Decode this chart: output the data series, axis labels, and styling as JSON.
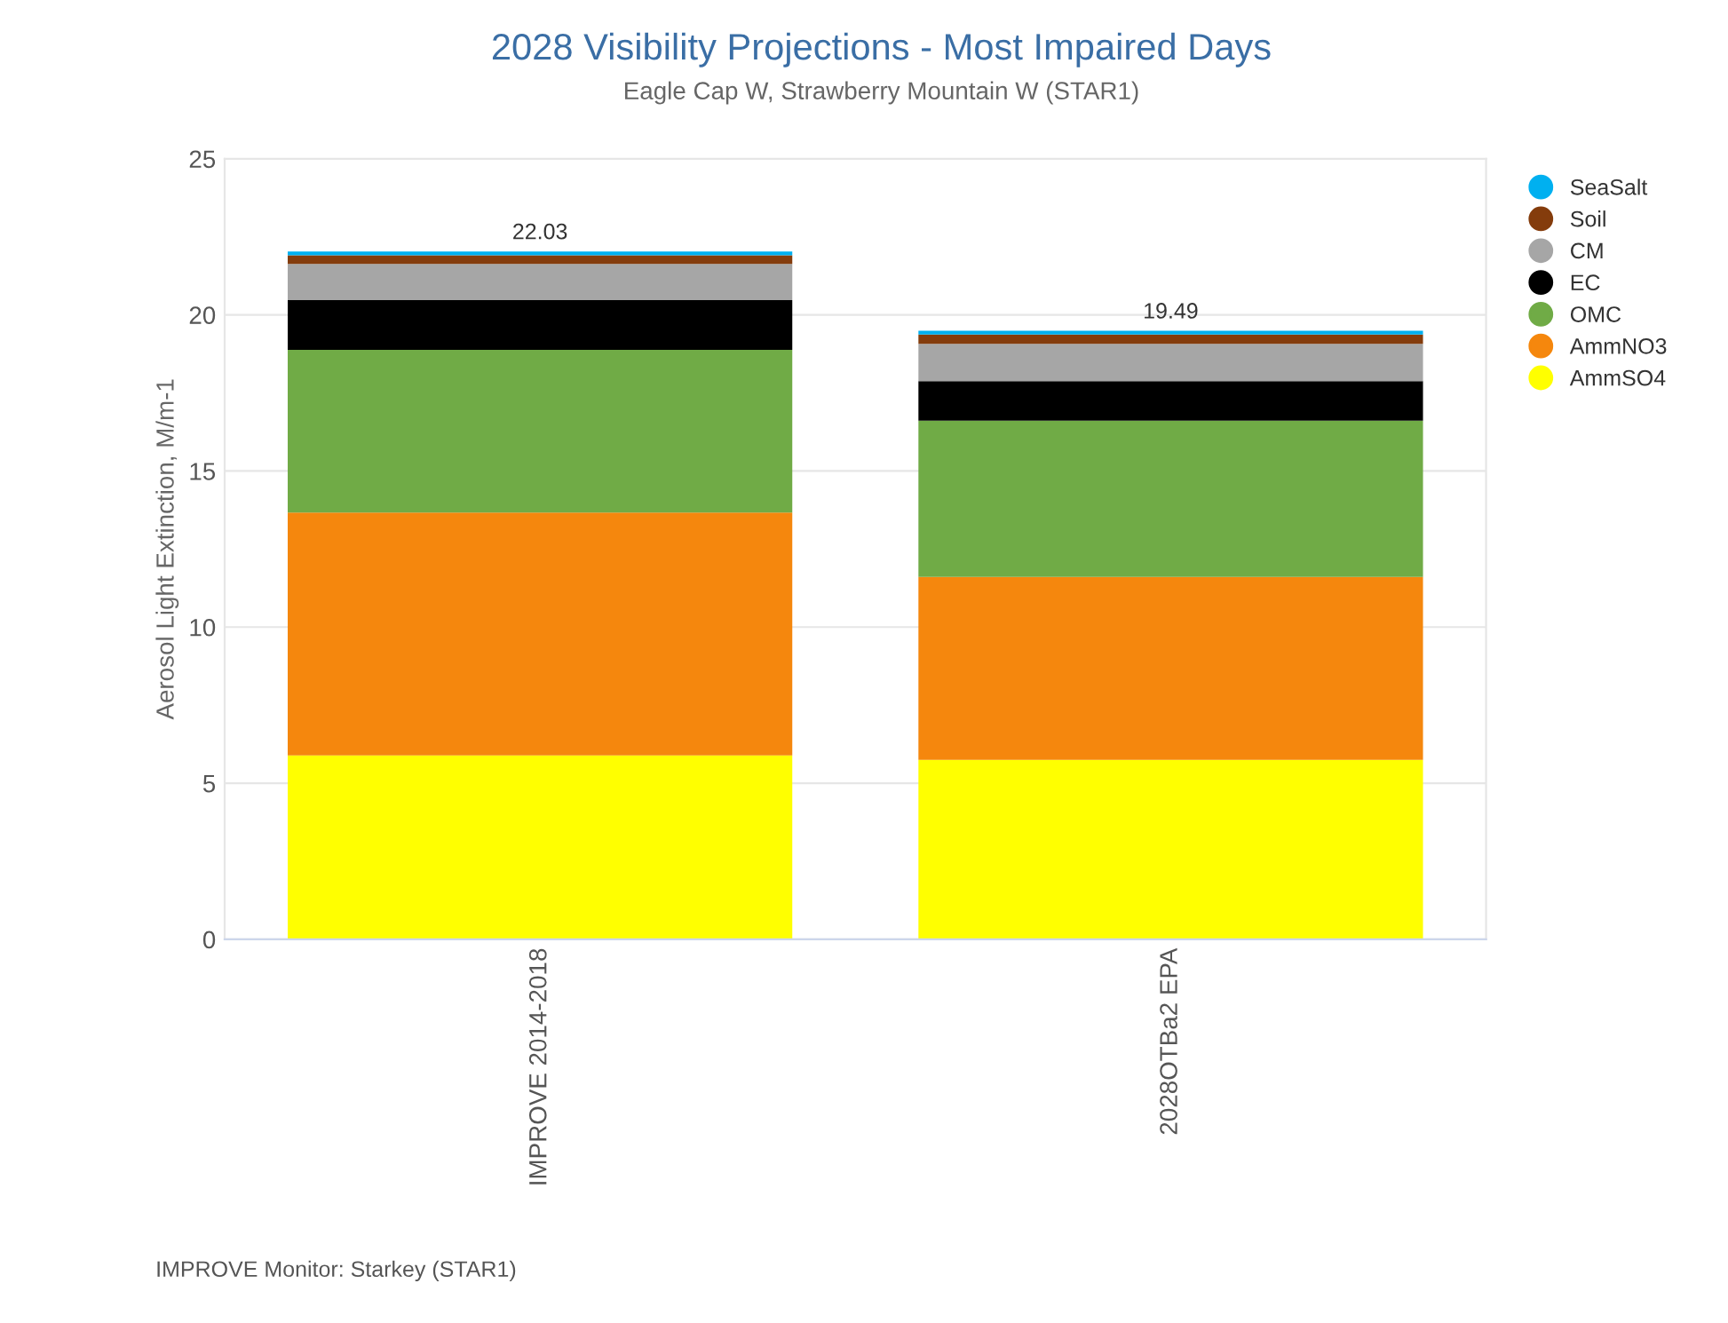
{
  "chart_data": {
    "type": "bar",
    "title": "2028 Visibility Projections - Most Impaired Days",
    "subtitle": "Eagle Cap W, Strawberry Mountain W (STAR1)",
    "ylabel": "Aerosol Light Extinction, M/m-1",
    "categories": [
      "IMPROVE 2014-2018",
      "2028OTBa2 EPA"
    ],
    "stacked": true,
    "series": [
      {
        "name": "AmmSO4",
        "color": "#ffff00",
        "values": [
          5.89,
          5.75
        ]
      },
      {
        "name": "AmmNO3",
        "color": "#f5870d",
        "values": [
          7.78,
          5.86
        ]
      },
      {
        "name": "OMC",
        "color": "#70ab46",
        "values": [
          5.21,
          5.0
        ]
      },
      {
        "name": "EC",
        "color": "#000000",
        "values": [
          1.59,
          1.27
        ]
      },
      {
        "name": "CM",
        "color": "#a6a6a6",
        "values": [
          1.16,
          1.19
        ]
      },
      {
        "name": "Soil",
        "color": "#843c0c",
        "values": [
          0.28,
          0.3
        ]
      },
      {
        "name": "SeaSalt",
        "color": "#00b0f0",
        "values": [
          0.12,
          0.12
        ]
      }
    ],
    "totals": [
      "22.03",
      "19.49"
    ],
    "ylim": [
      0,
      25
    ],
    "yticks": [
      0,
      5,
      10,
      15,
      20,
      25
    ],
    "grid": "y",
    "legend": "right",
    "annotations": [
      "IMPROVE Monitor: Starkey (STAR1)"
    ]
  }
}
